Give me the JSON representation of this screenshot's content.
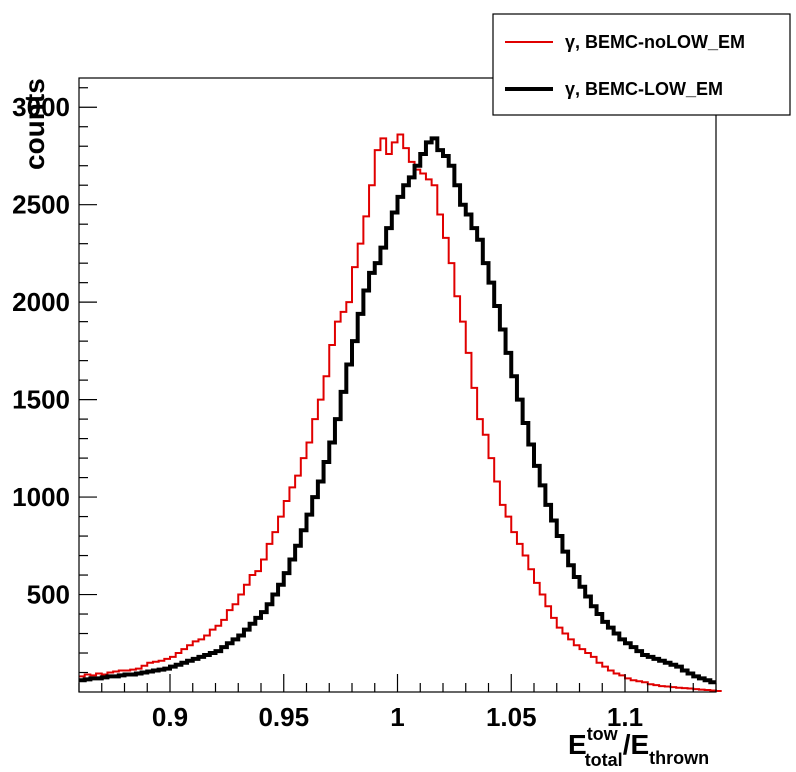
{
  "chart_data": {
    "type": "line",
    "style": "step-histogram",
    "xlim": [
      0.86,
      1.14
    ],
    "ylim": [
      0,
      3150
    ],
    "x_ticks": [
      0.9,
      0.95,
      1,
      1.05,
      1.1
    ],
    "x_tick_labels": [
      "0.9",
      "0.95",
      "1",
      "1.05",
      "1.1"
    ],
    "y_ticks": [
      500,
      1000,
      1500,
      2000,
      2500,
      3000
    ],
    "y_tick_labels": [
      "500",
      "1000",
      "1500",
      "2000",
      "2500",
      "3000"
    ],
    "ylabel": "counts",
    "xlabel": {
      "e1": "E",
      "sup1": "tow",
      "sub1": "total",
      "slash": "/",
      "e2": "E",
      "sub2": "thrown"
    },
    "legend_position": "top-right",
    "grid": false,
    "bin_width": 0.0025,
    "x_start": 0.86,
    "series": [
      {
        "name": "γ, BEMC-noLOW_EM",
        "color": "#e00000",
        "line": "thin",
        "values": [
          80,
          90,
          85,
          95,
          90,
          100,
          105,
          110,
          110,
          115,
          120,
          135,
          150,
          155,
          160,
          170,
          180,
          200,
          220,
          240,
          260,
          270,
          290,
          320,
          340,
          370,
          420,
          450,
          500,
          550,
          600,
          620,
          680,
          760,
          820,
          900,
          980,
          1050,
          1110,
          1200,
          1280,
          1400,
          1500,
          1620,
          1780,
          1900,
          1950,
          2000,
          2180,
          2300,
          2440,
          2600,
          2780,
          2840,
          2760,
          2820,
          2860,
          2790,
          2720,
          2680,
          2660,
          2630,
          2600,
          2450,
          2330,
          2200,
          2030,
          1900,
          1740,
          1560,
          1400,
          1320,
          1200,
          1080,
          960,
          900,
          820,
          760,
          700,
          630,
          560,
          500,
          440,
          380,
          330,
          300,
          270,
          240,
          220,
          200,
          180,
          150,
          130,
          110,
          95,
          85,
          70,
          60,
          55,
          50,
          40,
          35,
          30,
          28,
          25,
          22,
          20,
          18,
          15,
          12,
          10,
          8,
          6,
          5
        ]
      },
      {
        "name": "γ, BEMC-LOW_EM",
        "color": "#000000",
        "line": "thick",
        "values": [
          60,
          65,
          70,
          70,
          75,
          80,
          80,
          85,
          90,
          90,
          95,
          100,
          105,
          110,
          115,
          120,
          130,
          140,
          150,
          160,
          170,
          180,
          190,
          200,
          210,
          230,
          250,
          270,
          290,
          320,
          350,
          380,
          410,
          450,
          500,
          550,
          610,
          680,
          750,
          830,
          910,
          1000,
          1080,
          1180,
          1280,
          1400,
          1540,
          1680,
          1800,
          1940,
          2060,
          2150,
          2200,
          2280,
          2380,
          2460,
          2540,
          2600,
          2640,
          2700,
          2760,
          2820,
          2840,
          2780,
          2750,
          2700,
          2600,
          2500,
          2450,
          2380,
          2320,
          2200,
          2100,
          1980,
          1860,
          1740,
          1620,
          1500,
          1380,
          1270,
          1160,
          1060,
          960,
          880,
          800,
          720,
          650,
          590,
          540,
          490,
          440,
          400,
          360,
          330,
          300,
          270,
          250,
          230,
          210,
          190,
          180,
          170,
          160,
          150,
          140,
          130,
          110,
          95,
          80,
          70,
          60,
          50
        ]
      }
    ]
  }
}
